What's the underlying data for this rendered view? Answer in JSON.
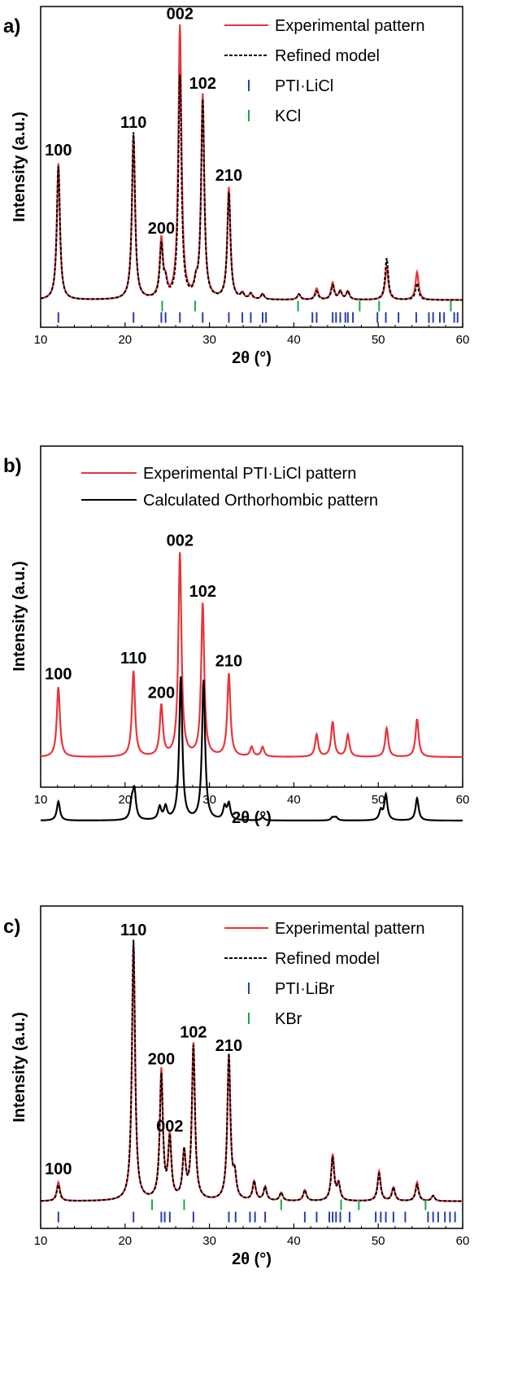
{
  "chart_data": [
    {
      "type": "line",
      "panel_label": "a)",
      "xlabel": "2θ (°)",
      "ylabel": "Intensity (a.u.)",
      "xlim": [
        10,
        60
      ],
      "xticks": [
        10,
        20,
        30,
        40,
        50,
        60
      ],
      "ylim": [
        0,
        1.0
      ],
      "legend_position": "top-right",
      "grid": false,
      "legend": [
        {
          "label": "Experimental pattern",
          "style": "solid",
          "color": "#e8353a"
        },
        {
          "label": "Refined model",
          "style": "dashed",
          "color": "#000000"
        },
        {
          "label": "PTI·LiCl",
          "style": "tick",
          "color": "#2b3fa8"
        },
        {
          "label": "KCl",
          "style": "tick",
          "color": "#1aa64a"
        }
      ],
      "series": [
        {
          "name": "Experimental pattern",
          "style": "solid",
          "color": "#e8353a",
          "x": [
            10,
            12.1,
            21.0,
            24.3,
            24.8,
            26.5,
            28.4,
            29.2,
            32.3,
            33.9,
            34.9,
            36.3,
            40.6,
            42.7,
            44.6,
            45.5,
            46.4,
            51.0,
            54.6,
            60
          ],
          "y": [
            0.01,
            0.5,
            0.6,
            0.22,
            0.06,
            0.99,
            0.05,
            0.74,
            0.41,
            0.03,
            0.03,
            0.03,
            0.03,
            0.05,
            0.07,
            0.04,
            0.04,
            0.13,
            0.11,
            0.01
          ]
        },
        {
          "name": "Refined model",
          "style": "dashed",
          "color": "#000000",
          "x": [
            10,
            12.1,
            21.0,
            24.3,
            24.8,
            26.5,
            28.4,
            29.2,
            32.3,
            33.9,
            34.9,
            36.3,
            40.6,
            42.7,
            44.6,
            45.5,
            46.4,
            51.0,
            54.6,
            60
          ],
          "y": [
            0.01,
            0.49,
            0.61,
            0.2,
            0.06,
            0.81,
            0.05,
            0.72,
            0.39,
            0.03,
            0.03,
            0.03,
            0.03,
            0.04,
            0.06,
            0.04,
            0.04,
            0.16,
            0.07,
            0.01
          ]
        }
      ],
      "peak_labels": [
        {
          "text": "100",
          "x": 12.1,
          "y": 0.5
        },
        {
          "text": "110",
          "x": 21.0,
          "y": 0.6
        },
        {
          "text": "200",
          "x": 24.3,
          "y": 0.22
        },
        {
          "text": "002",
          "x": 26.5,
          "y": 0.99
        },
        {
          "text": "102",
          "x": 29.2,
          "y": 0.74
        },
        {
          "text": "210",
          "x": 32.3,
          "y": 0.41
        }
      ],
      "reflection_markers": [
        {
          "name": "KCl",
          "color": "#1aa64a",
          "row": 0,
          "x": [
            24.4,
            28.3,
            40.5,
            47.8,
            50.1,
            58.6
          ]
        },
        {
          "name": "PTI·LiCl",
          "color": "#2b3fa8",
          "row": 1,
          "x": [
            12.1,
            21.0,
            24.3,
            24.8,
            26.5,
            29.2,
            32.3,
            33.9,
            34.9,
            36.3,
            36.7,
            42.2,
            42.7,
            44.6,
            45.0,
            45.5,
            46.1,
            46.4,
            47.0,
            49.9,
            50.9,
            52.4,
            54.5,
            56.0,
            56.5,
            57.3,
            57.8,
            59.0,
            59.4
          ]
        }
      ]
    },
    {
      "type": "line",
      "panel_label": "b)",
      "xlabel": "2θ (°)",
      "ylabel": "Intensity (a.u.)",
      "xlim": [
        10,
        60
      ],
      "xticks": [
        10,
        20,
        30,
        40,
        50,
        60
      ],
      "ylim": [
        0,
        1.0
      ],
      "legend_position": "top-center",
      "grid": false,
      "legend": [
        {
          "label": "Experimental PTI·LiCl pattern",
          "style": "solid",
          "color": "#e8353a"
        },
        {
          "label": "Calculated Orthorhombic pattern",
          "style": "solid",
          "color": "#000000"
        }
      ],
      "series": [
        {
          "name": "Experimental PTI·LiCl pattern",
          "style": "solid",
          "color": "#e8353a",
          "x": [
            10,
            12.1,
            21.0,
            24.3,
            26.5,
            29.2,
            32.3,
            35.0,
            36.3,
            42.7,
            44.6,
            46.4,
            51.0,
            54.6,
            60
          ],
          "y": [
            0.21,
            0.43,
            0.48,
            0.37,
            0.85,
            0.69,
            0.47,
            0.24,
            0.24,
            0.28,
            0.32,
            0.28,
            0.3,
            0.33,
            0.22
          ]
        },
        {
          "name": "Calculated Orthorhombic pattern",
          "style": "solid",
          "color": "#000000",
          "x": [
            10,
            12.1,
            20.8,
            21.1,
            24.1,
            24.8,
            26.6,
            29.3,
            31.8,
            32.3,
            36.3,
            44.6,
            45.0,
            50.3,
            50.9,
            54.6,
            60
          ],
          "y": [
            0.01,
            0.07,
            0.06,
            0.1,
            0.05,
            0.05,
            0.46,
            0.45,
            0.05,
            0.06,
            0.02,
            0.02,
            0.02,
            0.04,
            0.09,
            0.08,
            0.01
          ]
        }
      ],
      "peak_labels": [
        {
          "text": "100",
          "x": 12.1,
          "y": 0.43
        },
        {
          "text": "110",
          "x": 21.0,
          "y": 0.48
        },
        {
          "text": "200",
          "x": 24.3,
          "y": 0.37
        },
        {
          "text": "002",
          "x": 26.5,
          "y": 0.85
        },
        {
          "text": "102",
          "x": 29.2,
          "y": 0.69
        },
        {
          "text": "210",
          "x": 32.3,
          "y": 0.47
        }
      ],
      "reflection_markers": []
    },
    {
      "type": "line",
      "panel_label": "c)",
      "xlabel": "2θ (°)",
      "ylabel": "Intensity (a.u.)",
      "xlim": [
        10,
        60
      ],
      "xticks": [
        10,
        20,
        30,
        40,
        50,
        60
      ],
      "ylim": [
        0,
        1.0
      ],
      "legend_position": "top-right",
      "grid": false,
      "legend": [
        {
          "label": "Experimental pattern",
          "style": "solid",
          "color": "#e8353a"
        },
        {
          "label": "Refined model",
          "style": "dashed",
          "color": "#000000"
        },
        {
          "label": "PTI·LiBr",
          "style": "tick",
          "color": "#2b3fa8"
        },
        {
          "label": "KBr",
          "style": "tick",
          "color": "#1aa64a"
        }
      ],
      "series": [
        {
          "name": "Experimental pattern",
          "style": "solid",
          "color": "#e8353a",
          "x": [
            10,
            12.1,
            21.0,
            24.3,
            25.3,
            27.0,
            28.1,
            32.3,
            33.0,
            35.3,
            36.6,
            38.5,
            41.3,
            44.6,
            45.3,
            50.1,
            51.8,
            54.6,
            56.5,
            60
          ],
          "y": [
            0.01,
            0.08,
            0.97,
            0.49,
            0.24,
            0.18,
            0.59,
            0.54,
            0.09,
            0.08,
            0.06,
            0.04,
            0.05,
            0.18,
            0.07,
            0.12,
            0.06,
            0.08,
            0.03,
            0.01
          ]
        },
        {
          "name": "Refined model",
          "style": "dashed",
          "color": "#000000",
          "x": [
            10,
            12.1,
            21.0,
            24.3,
            25.3,
            27.0,
            28.1,
            32.3,
            33.0,
            35.3,
            36.6,
            38.5,
            41.3,
            44.6,
            45.3,
            50.1,
            51.8,
            54.6,
            56.5,
            60
          ],
          "y": [
            0.01,
            0.07,
            0.98,
            0.47,
            0.23,
            0.18,
            0.58,
            0.55,
            0.09,
            0.08,
            0.06,
            0.04,
            0.05,
            0.17,
            0.07,
            0.11,
            0.06,
            0.07,
            0.03,
            0.01
          ]
        }
      ],
      "peak_labels": [
        {
          "text": "100",
          "x": 12.1,
          "y": 0.08
        },
        {
          "text": "110",
          "x": 21.0,
          "y": 0.97
        },
        {
          "text": "200",
          "x": 24.3,
          "y": 0.49
        },
        {
          "text": "002",
          "x": 25.3,
          "y": 0.24
        },
        {
          "text": "102",
          "x": 28.1,
          "y": 0.59
        },
        {
          "text": "210",
          "x": 32.3,
          "y": 0.54
        }
      ],
      "reflection_markers": [
        {
          "name": "KBr",
          "color": "#1aa64a",
          "row": 0,
          "x": [
            23.2,
            27.0,
            38.5,
            45.6,
            47.7,
            55.6
          ]
        },
        {
          "name": "PTI·LiBr",
          "color": "#2b3fa8",
          "row": 1,
          "x": [
            12.1,
            21.0,
            24.3,
            24.7,
            25.3,
            28.1,
            32.3,
            33.1,
            34.8,
            35.4,
            36.6,
            41.3,
            42.7,
            44.2,
            44.6,
            45.0,
            45.5,
            46.6,
            49.7,
            50.3,
            50.9,
            51.8,
            53.2,
            55.9,
            56.5,
            57.1,
            57.9,
            58.5,
            59.1
          ]
        }
      ]
    }
  ]
}
